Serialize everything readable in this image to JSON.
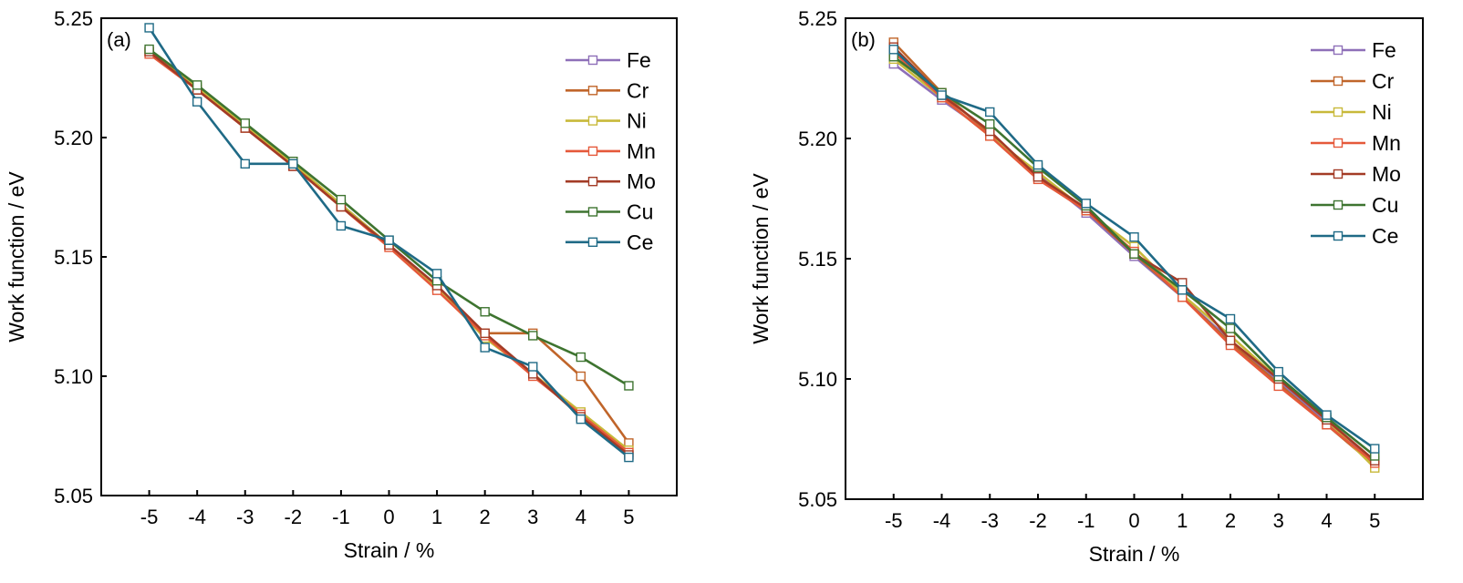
{
  "chart_data": [
    {
      "type": "line",
      "panel_label": "(a)",
      "xlabel": "Strain / %",
      "ylabel": "Work function / eV",
      "x": [
        -5,
        -4,
        -3,
        -2,
        -1,
        0,
        1,
        2,
        3,
        4,
        5
      ],
      "xlim": [
        -6,
        6
      ],
      "ylim": [
        5.05,
        5.25
      ],
      "yticks": [
        "5.05",
        "5.10",
        "5.15",
        "5.20",
        "5.25"
      ],
      "legend_position": "top-right",
      "grid": false,
      "series": [
        {
          "name": "Fe",
          "color": "#8e6fb8",
          "values": [
            5.236,
            5.22,
            5.205,
            5.188,
            5.172,
            5.155,
            5.138,
            5.117,
            5.101,
            5.083,
            5.067
          ]
        },
        {
          "name": "Cr",
          "color": "#c0652a",
          "values": [
            5.236,
            5.22,
            5.204,
            5.188,
            5.171,
            5.155,
            5.137,
            5.118,
            5.118,
            5.1,
            5.072
          ]
        },
        {
          "name": "Ni",
          "color": "#c8b93a",
          "values": [
            5.236,
            5.221,
            5.205,
            5.189,
            5.172,
            5.155,
            5.137,
            5.116,
            5.101,
            5.085,
            5.069
          ]
        },
        {
          "name": "Mn",
          "color": "#e5593a",
          "values": [
            5.235,
            5.22,
            5.204,
            5.188,
            5.171,
            5.154,
            5.136,
            5.117,
            5.1,
            5.084,
            5.068
          ]
        },
        {
          "name": "Mo",
          "color": "#a33b26",
          "values": [
            5.236,
            5.22,
            5.204,
            5.188,
            5.171,
            5.155,
            5.138,
            5.118,
            5.101,
            5.083,
            5.067
          ]
        },
        {
          "name": "Cu",
          "color": "#3e7430",
          "values": [
            5.237,
            5.222,
            5.206,
            5.19,
            5.174,
            5.157,
            5.14,
            5.127,
            5.117,
            5.108,
            5.096
          ]
        },
        {
          "name": "Ce",
          "color": "#1f6a86",
          "values": [
            5.246,
            5.215,
            5.189,
            5.189,
            5.163,
            5.157,
            5.143,
            5.112,
            5.104,
            5.082,
            5.066
          ]
        }
      ]
    },
    {
      "type": "line",
      "panel_label": "(b)",
      "xlabel": "Strain / %",
      "ylabel": "Work function / eV",
      "x": [
        -5,
        -4,
        -3,
        -2,
        -1,
        0,
        1,
        2,
        3,
        4,
        5
      ],
      "xlim": [
        -6,
        6
      ],
      "ylim": [
        5.05,
        5.25
      ],
      "yticks": [
        "5.05",
        "5.10",
        "5.15",
        "5.20",
        "5.25"
      ],
      "legend_position": "top-right",
      "grid": false,
      "series": [
        {
          "name": "Fe",
          "color": "#8e6fb8",
          "values": [
            5.231,
            5.216,
            5.202,
            5.185,
            5.169,
            5.151,
            5.134,
            5.116,
            5.099,
            5.082,
            5.066
          ]
        },
        {
          "name": "Cr",
          "color": "#c0652a",
          "values": [
            5.24,
            5.219,
            5.202,
            5.184,
            5.17,
            5.152,
            5.134,
            5.115,
            5.098,
            5.081,
            5.064
          ]
        },
        {
          "name": "Ni",
          "color": "#c8b93a",
          "values": [
            5.233,
            5.217,
            5.201,
            5.186,
            5.17,
            5.155,
            5.135,
            5.118,
            5.1,
            5.083,
            5.063
          ]
        },
        {
          "name": "Mn",
          "color": "#e5593a",
          "values": [
            5.236,
            5.217,
            5.201,
            5.183,
            5.17,
            5.153,
            5.134,
            5.114,
            5.097,
            5.081,
            5.065
          ]
        },
        {
          "name": "Mo",
          "color": "#a33b26",
          "values": [
            5.238,
            5.218,
            5.203,
            5.184,
            5.171,
            5.152,
            5.14,
            5.116,
            5.1,
            5.083,
            5.066
          ]
        },
        {
          "name": "Cu",
          "color": "#3e7430",
          "values": [
            5.234,
            5.219,
            5.206,
            5.188,
            5.172,
            5.152,
            5.137,
            5.121,
            5.101,
            5.084,
            5.068
          ]
        },
        {
          "name": "Ce",
          "color": "#1f6a86",
          "values": [
            5.237,
            5.218,
            5.211,
            5.189,
            5.173,
            5.159,
            5.137,
            5.125,
            5.103,
            5.085,
            5.071
          ]
        }
      ]
    }
  ]
}
